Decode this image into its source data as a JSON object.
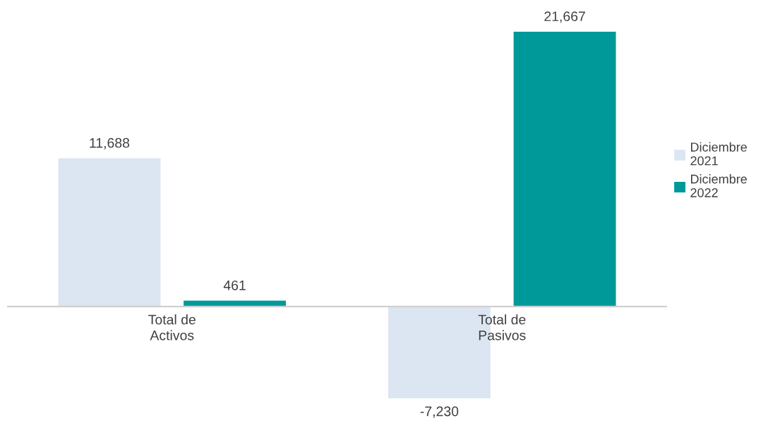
{
  "chart_data": {
    "type": "bar",
    "categories": [
      "Total de\nActivos",
      "Total de\nPasivos"
    ],
    "series": [
      {
        "name": "Diciembre 2021",
        "color": "#dce6f2",
        "values": [
          11688,
          -7230
        ],
        "value_labels": [
          "11,688",
          "-7,230"
        ]
      },
      {
        "name": "Diciembre 2022",
        "color": "#009999",
        "values": [
          461,
          21667
        ],
        "value_labels": [
          "461",
          "21,667"
        ]
      }
    ],
    "legend": "right"
  }
}
